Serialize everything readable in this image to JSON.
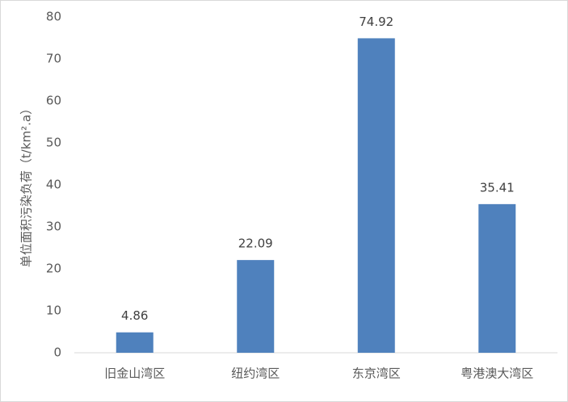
{
  "chart_data": {
    "type": "bar",
    "y_label": "单位面积污染负荷（t/km².a）",
    "categories": [
      "旧金山湾区",
      "纽约湾区",
      "东京湾区",
      "粤港澳大湾区"
    ],
    "values": [
      4.86,
      22.09,
      74.92,
      35.41
    ],
    "color": "#4f81bd",
    "ylim": [
      0,
      80
    ],
    "yticks": [
      0,
      10,
      20,
      30,
      40,
      50,
      60,
      70,
      80
    ],
    "grid": false,
    "data_labels": true
  }
}
